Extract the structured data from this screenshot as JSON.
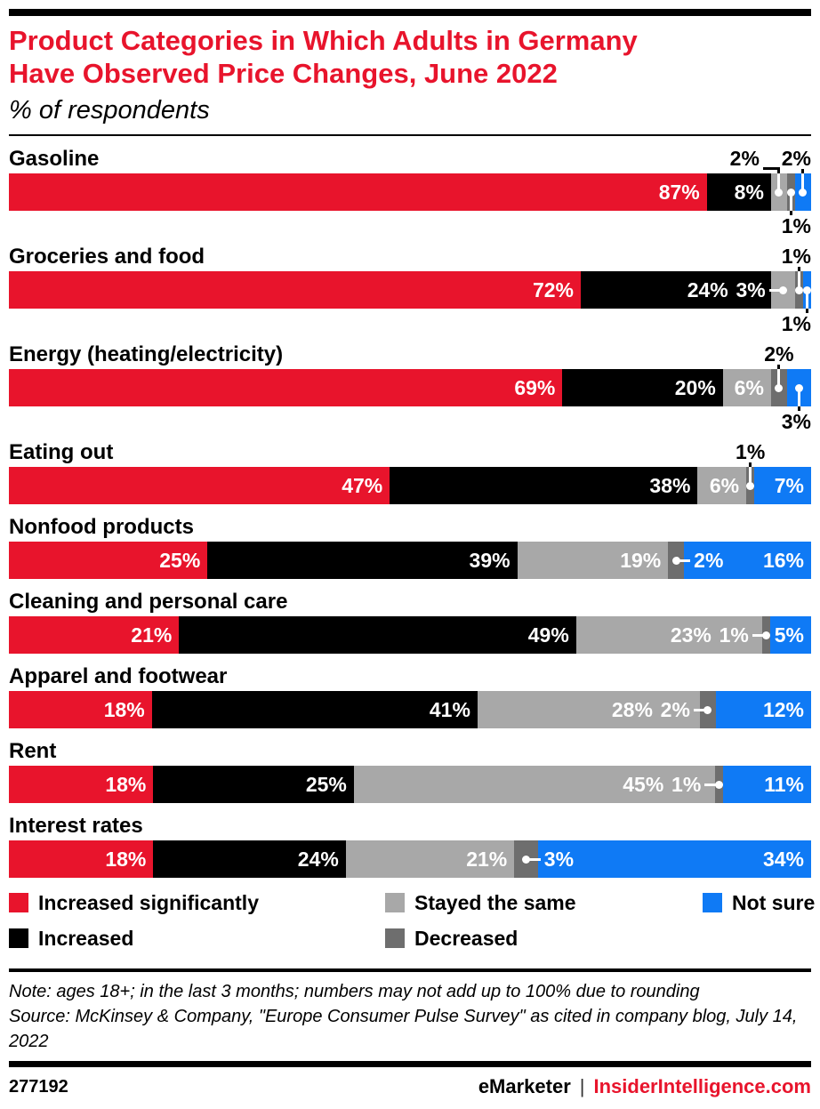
{
  "header": {
    "title_line1": "Product Categories in Which Adults in Germany",
    "title_line2": "Have Observed Price Changes, June 2022",
    "subtitle": "% of respondents"
  },
  "chart_data": {
    "type": "bar",
    "stacked": true,
    "orientation": "horizontal",
    "value_unit": "%",
    "xlim": [
      0,
      100
    ],
    "grid": false,
    "legend_position": "bottom",
    "series_names": [
      "Increased significantly",
      "Increased",
      "Stayed the same",
      "Decreased",
      "Not sure"
    ],
    "colors": [
      "#e8142c",
      "#000000",
      "#a8a8a8",
      "#6e6e6e",
      "#0f7af5"
    ],
    "categories": [
      "Gasoline",
      "Groceries and food",
      "Energy (heating/electricity)",
      "Eating out",
      "Nonfood products",
      "Cleaning and personal care",
      "Apparel and footwear",
      "Rent",
      "Interest rates"
    ],
    "rows": [
      {
        "category": "Gasoline",
        "values": [
          87,
          8,
          2,
          1,
          2
        ],
        "labels": [
          "87%",
          "8%",
          "2%",
          "1%",
          "2%"
        ],
        "modes": [
          "in",
          "in",
          "above-elbow",
          "below",
          "above"
        ]
      },
      {
        "category": "Groceries and food",
        "values": [
          72,
          24,
          3,
          1,
          1
        ],
        "labels": [
          "72%",
          "24%",
          "3%",
          "1%",
          "1%"
        ],
        "modes": [
          "in",
          "in",
          "leader-left",
          "above",
          "below"
        ]
      },
      {
        "category": "Energy (heating/electricity)",
        "values": [
          69,
          20,
          6,
          2,
          3
        ],
        "labels": [
          "69%",
          "20%",
          "6%",
          "2%",
          "3%"
        ],
        "modes": [
          "in",
          "in",
          "in",
          "above",
          "below"
        ]
      },
      {
        "category": "Eating out",
        "values": [
          47,
          38,
          6,
          1,
          7
        ],
        "labels": [
          "47%",
          "38%",
          "6%",
          "1%",
          "7%"
        ],
        "modes": [
          "in",
          "in",
          "in",
          "above",
          "in"
        ]
      },
      {
        "category": "Nonfood products",
        "values": [
          25,
          39,
          19,
          2,
          16
        ],
        "labels": [
          "25%",
          "39%",
          "19%",
          "2%",
          "16%"
        ],
        "modes": [
          "in",
          "in",
          "in",
          "leader-right",
          "in"
        ]
      },
      {
        "category": "Cleaning and personal care",
        "values": [
          21,
          49,
          23,
          1,
          5
        ],
        "labels": [
          "21%",
          "49%",
          "23%",
          "1%",
          "5%"
        ],
        "modes": [
          "in",
          "in",
          "in",
          "leader-left",
          "in"
        ]
      },
      {
        "category": "Apparel and footwear",
        "values": [
          18,
          41,
          28,
          2,
          12
        ],
        "labels": [
          "18%",
          "41%",
          "28%",
          "2%",
          "12%"
        ],
        "modes": [
          "in",
          "in",
          "in",
          "leader-left",
          "in"
        ]
      },
      {
        "category": "Rent",
        "values": [
          18,
          25,
          45,
          1,
          11
        ],
        "labels": [
          "18%",
          "25%",
          "45%",
          "1%",
          "11%"
        ],
        "modes": [
          "in",
          "in",
          "in",
          "leader-left",
          "in"
        ]
      },
      {
        "category": "Interest rates",
        "values": [
          18,
          24,
          21,
          3,
          34
        ],
        "labels": [
          "18%",
          "24%",
          "21%",
          "3%",
          "34%"
        ],
        "modes": [
          "in",
          "in",
          "in",
          "leader-right",
          "in"
        ]
      }
    ]
  },
  "legend": {
    "items": [
      {
        "label": "Increased significantly",
        "color": "#e8142c",
        "col": 0,
        "row": 0
      },
      {
        "label": "Increased",
        "color": "#000000",
        "col": 0,
        "row": 1
      },
      {
        "label": "Stayed the same",
        "color": "#a8a8a8",
        "col": 1,
        "row": 0
      },
      {
        "label": "Decreased",
        "color": "#6e6e6e",
        "col": 1,
        "row": 1
      },
      {
        "label": "Not sure",
        "color": "#0f7af5",
        "col": 2,
        "row": 0
      }
    ]
  },
  "notes": {
    "note": "Note: ages 18+; in the last 3 months; numbers may not add up to 100% due to rounding",
    "source": "Source: McKinsey & Company, \"Europe Consumer Pulse Survey\" as cited in company blog, July 14, 2022"
  },
  "footer": {
    "chart_id": "277192",
    "brand": "eMarketer",
    "separator": "|",
    "site": "InsiderIntelligence.com",
    "brand_color": "#000000",
    "site_color": "#e8142c",
    "title_color": "#e8142c"
  }
}
